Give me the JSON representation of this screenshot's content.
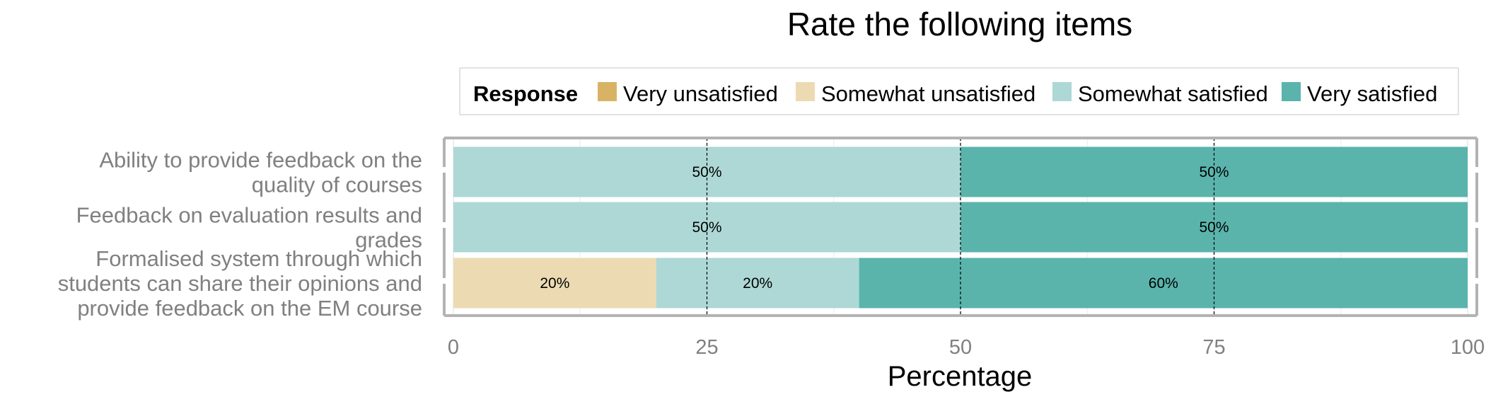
{
  "chart_data": {
    "type": "bar",
    "orientation": "horizontal",
    "stacked": true,
    "title": "Rate the following items",
    "xlabel": "Percentage",
    "ylabel": "",
    "xlim": [
      0,
      100
    ],
    "x_ticks": [
      0,
      25,
      50,
      75,
      100
    ],
    "x_tick_labels": [
      "0",
      "25",
      "50",
      "75",
      "100"
    ],
    "legend": {
      "title": "Response",
      "position": "top"
    },
    "categories": [
      {
        "label_lines": [
          "Ability to provide feedback on the",
          "quality of courses"
        ]
      },
      {
        "label_lines": [
          "Feedback on evaluation results and",
          "grades"
        ]
      },
      {
        "label_lines": [
          "Formalised system through which",
          "students can share their opinions and",
          "provide feedback on the EM course"
        ]
      }
    ],
    "series": [
      {
        "name": "Very unsatisfied",
        "color": "#d8b365",
        "values": [
          0,
          0,
          0
        ]
      },
      {
        "name": "Somewhat unsatisfied",
        "color": "#ecdbb2",
        "values": [
          0,
          0,
          20
        ]
      },
      {
        "name": "Somewhat satisfied",
        "color": "#add8d5",
        "values": [
          50,
          50,
          20
        ]
      },
      {
        "name": "Very satisfied",
        "color": "#5ab4ac",
        "values": [
          50,
          50,
          60
        ]
      }
    ],
    "data_label_suffix": "%",
    "reference_lines": [
      25,
      50,
      75
    ],
    "grid": true
  }
}
